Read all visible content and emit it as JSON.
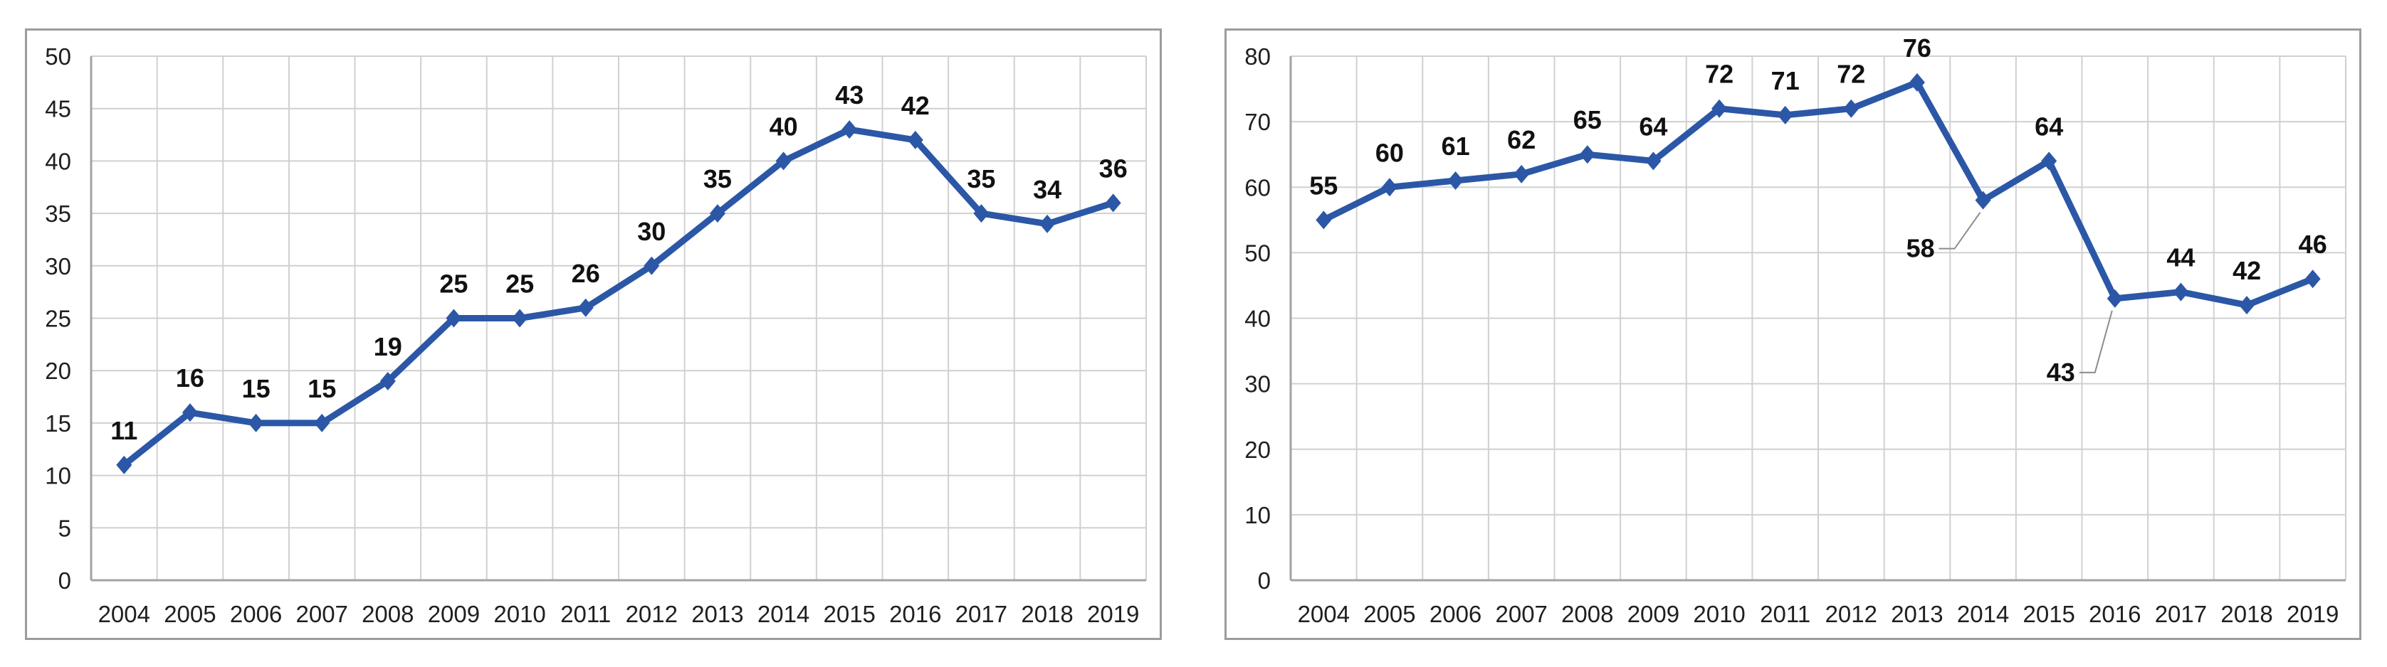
{
  "page": {
    "background": "#ffffff"
  },
  "style": {
    "grid_color": "#d0d0d0",
    "axis_color": "#a3a3a3",
    "border_color": "#9c9c9c",
    "tick_label_color": "#1f1f1f",
    "data_label_color": "#111111",
    "leader_color": "#8c8c8c",
    "line_color": "#2B57A6",
    "marker_color": "#2B57A6"
  },
  "chart_data": [
    {
      "type": "line",
      "title": "",
      "xlabel": "",
      "ylabel": "",
      "legend": "none",
      "grid": true,
      "marker": "diamond",
      "categories": [
        "2004",
        "2005",
        "2006",
        "2007",
        "2008",
        "2009",
        "2010",
        "2011",
        "2012",
        "2013",
        "2014",
        "2015",
        "2016",
        "2017",
        "2018",
        "2019"
      ],
      "values": [
        11,
        16,
        15,
        15,
        19,
        25,
        25,
        26,
        30,
        35,
        40,
        43,
        42,
        35,
        34,
        36
      ],
      "ylim": [
        0,
        50
      ],
      "yticks": [
        0,
        5,
        10,
        15,
        20,
        25,
        30,
        35,
        40,
        45,
        50
      ],
      "data_labels": "above",
      "label_overrides": {}
    },
    {
      "type": "line",
      "title": "",
      "xlabel": "",
      "ylabel": "",
      "legend": "none",
      "grid": true,
      "marker": "diamond",
      "categories": [
        "2004",
        "2005",
        "2006",
        "2007",
        "2008",
        "2009",
        "2010",
        "2011",
        "2012",
        "2013",
        "2014",
        "2015",
        "2016",
        "2017",
        "2018",
        "2019"
      ],
      "values": [
        55,
        60,
        61,
        62,
        65,
        64,
        72,
        71,
        72,
        76,
        58,
        64,
        43,
        44,
        42,
        46
      ],
      "ylim": [
        0,
        80
      ],
      "yticks": [
        0,
        10,
        20,
        30,
        40,
        50,
        60,
        70,
        80
      ],
      "data_labels": "above",
      "label_overrides": {
        "10": {
          "dx": -88,
          "dy": 80,
          "leader": true
        },
        "12": {
          "dx": -76,
          "dy": 116,
          "leader": true
        }
      }
    }
  ]
}
